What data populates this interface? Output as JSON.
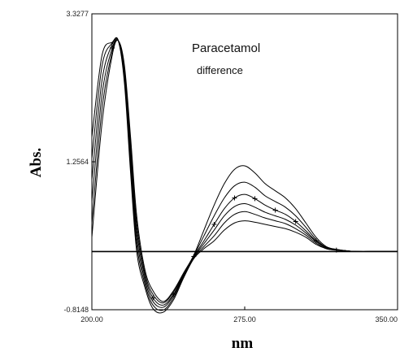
{
  "chart_data": {
    "type": "line",
    "title": "",
    "xlabel": "nm",
    "ylabel": "Abs.",
    "xlim": [
      200.0,
      350.0
    ],
    "ylim": [
      -0.8148,
      3.3277
    ],
    "x_tick_labels": [
      {
        "value": 200.0,
        "label": "200.00"
      },
      {
        "value": 275.0,
        "label": "275.00"
      },
      {
        "value": 350.0,
        "label": "350.00"
      }
    ],
    "y_tick_labels": [
      {
        "value": 3.3277,
        "label": "3.3277"
      },
      {
        "value": 1.2564,
        "label": "1.2564"
      },
      {
        "value": -0.8148,
        "label": "-0.8148"
      }
    ],
    "annotations": [
      "Paracetamol",
      "difference"
    ],
    "baseline_y": 0.0,
    "grid": false,
    "legend": "none",
    "series": [
      {
        "x": [
          200,
          205,
          210,
          213,
          216,
          219,
          222,
          226,
          230,
          235,
          240,
          245,
          250,
          255,
          260,
          265,
          270,
          275,
          280,
          285,
          290,
          295,
          300,
          305,
          310,
          315,
          320,
          325,
          330,
          340,
          350
        ],
        "y": [
          0.2,
          1.8,
          2.75,
          2.95,
          2.6,
          1.6,
          0.5,
          -0.25,
          -0.55,
          -0.7,
          -0.55,
          -0.3,
          -0.05,
          0.3,
          0.65,
          0.95,
          1.15,
          1.2,
          1.1,
          0.95,
          0.85,
          0.75,
          0.6,
          0.4,
          0.2,
          0.07,
          0.03,
          0.01,
          0.0,
          0.0,
          0.0
        ]
      },
      {
        "x": [
          200,
          205,
          210,
          213,
          216,
          219,
          222,
          226,
          230,
          235,
          240,
          245,
          250,
          255,
          260,
          265,
          270,
          275,
          280,
          285,
          290,
          295,
          300,
          305,
          310,
          315,
          320,
          325,
          330,
          340,
          350
        ],
        "y": [
          0.4,
          2.0,
          2.8,
          2.95,
          2.55,
          1.5,
          0.4,
          -0.3,
          -0.6,
          -0.72,
          -0.57,
          -0.32,
          -0.06,
          0.22,
          0.5,
          0.75,
          0.92,
          0.97,
          0.9,
          0.78,
          0.7,
          0.62,
          0.5,
          0.34,
          0.17,
          0.06,
          0.03,
          0.01,
          0.0,
          0.0,
          0.0
        ]
      },
      {
        "x": [
          200,
          205,
          210,
          213,
          216,
          219,
          222,
          226,
          230,
          235,
          240,
          245,
          250,
          255,
          260,
          265,
          270,
          275,
          280,
          285,
          290,
          295,
          300,
          305,
          310,
          315,
          320,
          325,
          330,
          340,
          350
        ],
        "y": [
          0.7,
          2.2,
          2.85,
          2.95,
          2.5,
          1.4,
          0.3,
          -0.35,
          -0.65,
          -0.75,
          -0.6,
          -0.33,
          -0.07,
          0.15,
          0.38,
          0.6,
          0.75,
          0.8,
          0.74,
          0.65,
          0.58,
          0.52,
          0.42,
          0.29,
          0.15,
          0.05,
          0.02,
          0.01,
          0.0,
          0.0,
          0.0
        ]
      },
      {
        "x": [
          200,
          205,
          210,
          213,
          216,
          219,
          222,
          226,
          230,
          235,
          240,
          245,
          250,
          255,
          260,
          265,
          270,
          275,
          280,
          285,
          290,
          295,
          300,
          305,
          310,
          315,
          320,
          325,
          330,
          340,
          350
        ],
        "y": [
          1.0,
          2.4,
          2.9,
          2.95,
          2.45,
          1.3,
          0.2,
          -0.4,
          -0.7,
          -0.78,
          -0.62,
          -0.34,
          -0.08,
          0.11,
          0.3,
          0.5,
          0.63,
          0.67,
          0.62,
          0.55,
          0.5,
          0.45,
          0.37,
          0.26,
          0.14,
          0.05,
          0.02,
          0.01,
          0.0,
          0.0,
          0.0
        ]
      },
      {
        "x": [
          200,
          205,
          210,
          213,
          216,
          219,
          222,
          226,
          230,
          235,
          240,
          245,
          250,
          255,
          260,
          265,
          270,
          275,
          280,
          285,
          290,
          295,
          300,
          305,
          310,
          315,
          320,
          325,
          330,
          340,
          350
        ],
        "y": [
          1.3,
          2.6,
          2.92,
          2.95,
          2.4,
          1.2,
          0.1,
          -0.45,
          -0.75,
          -0.82,
          -0.65,
          -0.35,
          -0.09,
          0.07,
          0.22,
          0.4,
          0.52,
          0.56,
          0.52,
          0.47,
          0.43,
          0.39,
          0.32,
          0.23,
          0.12,
          0.04,
          0.02,
          0.01,
          0.0,
          0.0,
          0.0
        ]
      },
      {
        "x": [
          200,
          205,
          210,
          213,
          216,
          219,
          222,
          226,
          230,
          235,
          240,
          245,
          250,
          255,
          260,
          265,
          270,
          275,
          280,
          285,
          290,
          295,
          300,
          305,
          310,
          315,
          320,
          325,
          330,
          340,
          350
        ],
        "y": [
          1.6,
          2.75,
          2.93,
          2.95,
          2.35,
          1.1,
          0.0,
          -0.5,
          -0.8,
          -0.85,
          -0.68,
          -0.37,
          -0.1,
          0.04,
          0.15,
          0.3,
          0.4,
          0.43,
          0.41,
          0.38,
          0.35,
          0.32,
          0.27,
          0.2,
          0.1,
          0.04,
          0.02,
          0.01,
          0.0,
          0.0,
          0.0
        ]
      }
    ]
  }
}
